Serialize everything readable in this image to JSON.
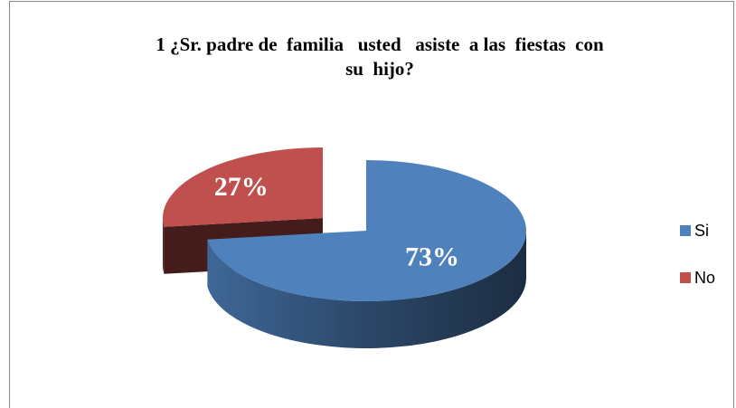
{
  "chart_data": {
    "type": "pie",
    "title": [
      "1 ¿Sr. padre de  familia   usted   asiste  a las  fiestas  con",
      "su  hijo?"
    ],
    "categories": [
      "Si",
      "No"
    ],
    "values": [
      73,
      27
    ],
    "value_labels": [
      "73%",
      "27%"
    ],
    "colors": [
      "#4f81bd",
      "#c0504d"
    ],
    "legend": "right"
  }
}
